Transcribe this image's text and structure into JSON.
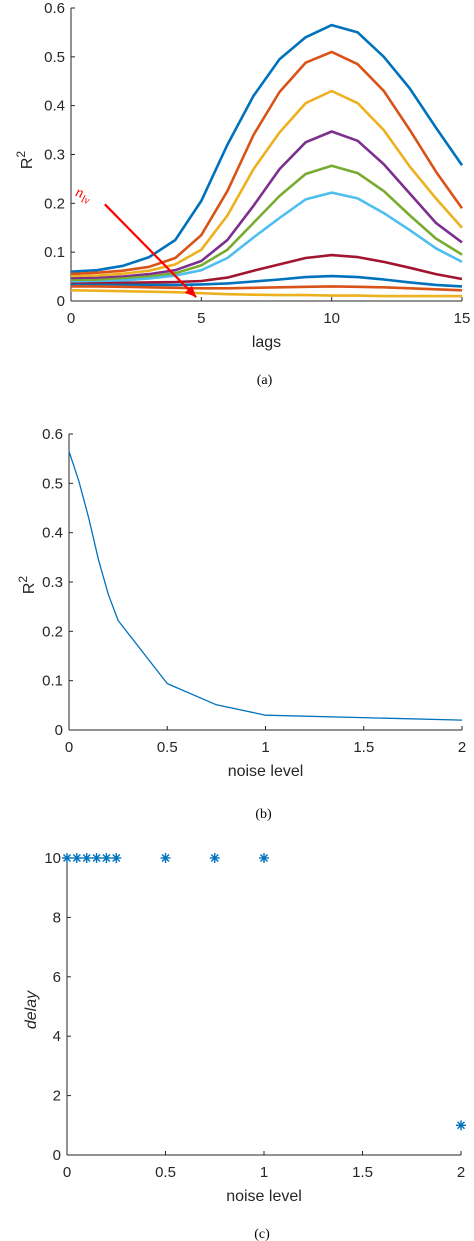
{
  "chart_data": [
    {
      "id": "a",
      "type": "line",
      "caption": "(a)",
      "xlabel": "lags",
      "ylabel": "R",
      "ylabel_sup": "2",
      "xlim": [
        0,
        15
      ],
      "ylim": [
        0,
        0.6
      ],
      "xticks": [
        "0",
        "5",
        "10",
        "15"
      ],
      "yticks": [
        "0",
        "0.1",
        "0.2",
        "0.3",
        "0.4",
        "0.5",
        "0.6"
      ],
      "x": [
        0,
        1,
        2,
        3,
        4,
        5,
        6,
        7,
        8,
        9,
        10,
        11,
        12,
        13,
        14,
        15
      ],
      "series": [
        {
          "color": "#0072bd",
          "values": [
            0.06,
            0.063,
            0.072,
            0.09,
            0.125,
            0.205,
            0.32,
            0.42,
            0.495,
            0.54,
            0.565,
            0.55,
            0.5,
            0.435,
            0.355,
            0.278
          ]
        },
        {
          "color": "#d95319",
          "values": [
            0.055,
            0.058,
            0.062,
            0.07,
            0.088,
            0.135,
            0.225,
            0.34,
            0.428,
            0.488,
            0.51,
            0.485,
            0.43,
            0.35,
            0.265,
            0.19
          ]
        },
        {
          "color": "#edb120",
          "values": [
            0.05,
            0.052,
            0.056,
            0.062,
            0.075,
            0.105,
            0.175,
            0.27,
            0.345,
            0.405,
            0.43,
            0.405,
            0.35,
            0.275,
            0.21,
            0.15
          ]
        },
        {
          "color": "#7e2f8e",
          "values": [
            0.046,
            0.047,
            0.05,
            0.055,
            0.063,
            0.082,
            0.125,
            0.195,
            0.27,
            0.325,
            0.347,
            0.328,
            0.28,
            0.22,
            0.16,
            0.12
          ]
        },
        {
          "color": "#77ac30",
          "values": [
            0.042,
            0.043,
            0.046,
            0.05,
            0.057,
            0.073,
            0.105,
            0.16,
            0.215,
            0.26,
            0.277,
            0.262,
            0.225,
            0.175,
            0.128,
            0.095
          ]
        },
        {
          "color": "#4dbeee",
          "values": [
            0.038,
            0.039,
            0.042,
            0.046,
            0.052,
            0.063,
            0.088,
            0.13,
            0.17,
            0.208,
            0.222,
            0.21,
            0.18,
            0.145,
            0.108,
            0.08
          ]
        },
        {
          "color": "#a2142f",
          "values": [
            0.035,
            0.036,
            0.037,
            0.038,
            0.039,
            0.041,
            0.048,
            0.062,
            0.075,
            0.088,
            0.094,
            0.09,
            0.08,
            0.068,
            0.055,
            0.045
          ]
        },
        {
          "color": "#0072bd",
          "values": [
            0.033,
            0.033,
            0.033,
            0.033,
            0.033,
            0.034,
            0.036,
            0.04,
            0.044,
            0.049,
            0.051,
            0.049,
            0.044,
            0.038,
            0.033,
            0.03
          ]
        },
        {
          "color": "#d95319",
          "values": [
            0.03,
            0.03,
            0.029,
            0.028,
            0.027,
            0.026,
            0.026,
            0.027,
            0.028,
            0.029,
            0.03,
            0.029,
            0.028,
            0.026,
            0.024,
            0.022
          ]
        },
        {
          "color": "#edb120",
          "values": [
            0.022,
            0.021,
            0.02,
            0.019,
            0.018,
            0.016,
            0.014,
            0.013,
            0.012,
            0.012,
            0.011,
            0.011,
            0.01,
            0.01,
            0.01,
            0.01
          ]
        }
      ],
      "annotation": {
        "text": "n",
        "subscript": "lv",
        "color": "#ff0000",
        "arrow_from": [
          1.3,
          0.198
        ],
        "arrow_to": [
          4.8,
          0.008
        ]
      }
    },
    {
      "id": "b",
      "type": "line",
      "caption": "(b)",
      "xlabel": "noise level",
      "ylabel": "R",
      "ylabel_sup": "2",
      "xlim": [
        0,
        2
      ],
      "ylim": [
        0,
        0.6
      ],
      "xticks": [
        "0",
        "0.5",
        "1",
        "1.5",
        "2"
      ],
      "yticks": [
        "0",
        "0.1",
        "0.2",
        "0.3",
        "0.4",
        "0.5",
        "0.6"
      ],
      "x": [
        0,
        0.05,
        0.1,
        0.15,
        0.2,
        0.25,
        0.5,
        0.75,
        1,
        2
      ],
      "series": [
        {
          "color": "#0072bd",
          "values": [
            0.565,
            0.505,
            0.43,
            0.345,
            0.275,
            0.222,
            0.094,
            0.051,
            0.03,
            0.02
          ]
        }
      ]
    },
    {
      "id": "c",
      "type": "scatter",
      "caption": "(c)",
      "xlabel": "noise level",
      "ylabel": "delay",
      "xlim": [
        0,
        2
      ],
      "ylim": [
        0,
        10
      ],
      "xticks": [
        "0",
        "0.5",
        "1",
        "1.5",
        "2"
      ],
      "yticks": [
        "0",
        "2",
        "4",
        "6",
        "8",
        "10"
      ],
      "marker": "*",
      "x": [
        0,
        0.05,
        0.1,
        0.15,
        0.2,
        0.25,
        0.5,
        0.75,
        1,
        2
      ],
      "series": [
        {
          "color": "#0072bd",
          "values": [
            10,
            10,
            10,
            10,
            10,
            10,
            10,
            10,
            10,
            1
          ]
        }
      ]
    }
  ]
}
